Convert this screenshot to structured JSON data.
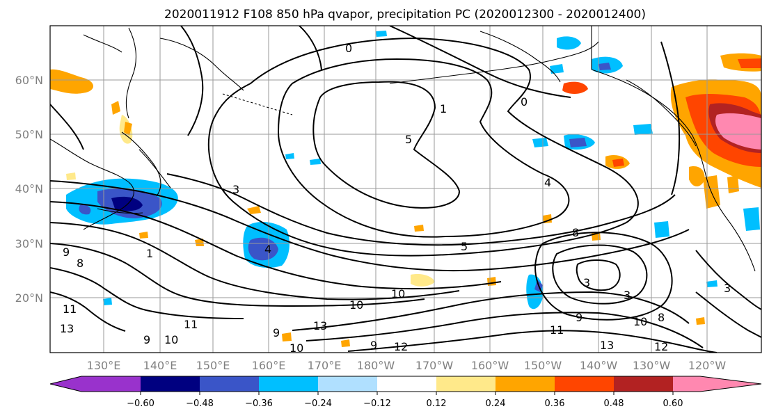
{
  "title": "2020011912 F108 850 hPa qvapor, precipitation PC (2020012300 - 2020012400)",
  "map": {
    "lat_labels": [
      "60°N",
      "50°N",
      "40°N",
      "30°N",
      "20°N"
    ],
    "lon_labels": [
      "130°E",
      "140°E",
      "150°E",
      "160°E",
      "170°E",
      "180°W",
      "170°W",
      "160°W",
      "150°W",
      "140°W",
      "130°W",
      "120°W"
    ],
    "contour_labels": [
      "0",
      "1",
      "0",
      "3",
      "4",
      "5",
      "3",
      "4",
      "8",
      "5",
      "9",
      "8",
      "10",
      "10",
      "11",
      "9",
      "9",
      "8",
      "10",
      "13",
      "10",
      "9",
      "11",
      "12",
      "3",
      "3",
      "13",
      "9",
      "10",
      "11",
      "12",
      "13",
      "1"
    ]
  },
  "colorbar": {
    "tick_labels": [
      "−0.60",
      "−0.48",
      "−0.36",
      "−0.24",
      "−0.12",
      "0.12",
      "0.24",
      "0.36",
      "0.48",
      "0.60"
    ],
    "colors": [
      "#9932cc",
      "#000080",
      "#3a55c8",
      "#00bfff",
      "#b0e0ff",
      "#ffffff",
      "#ffe98a",
      "#ffa500",
      "#ff4500",
      "#b22222",
      "#ff88b0"
    ]
  }
}
